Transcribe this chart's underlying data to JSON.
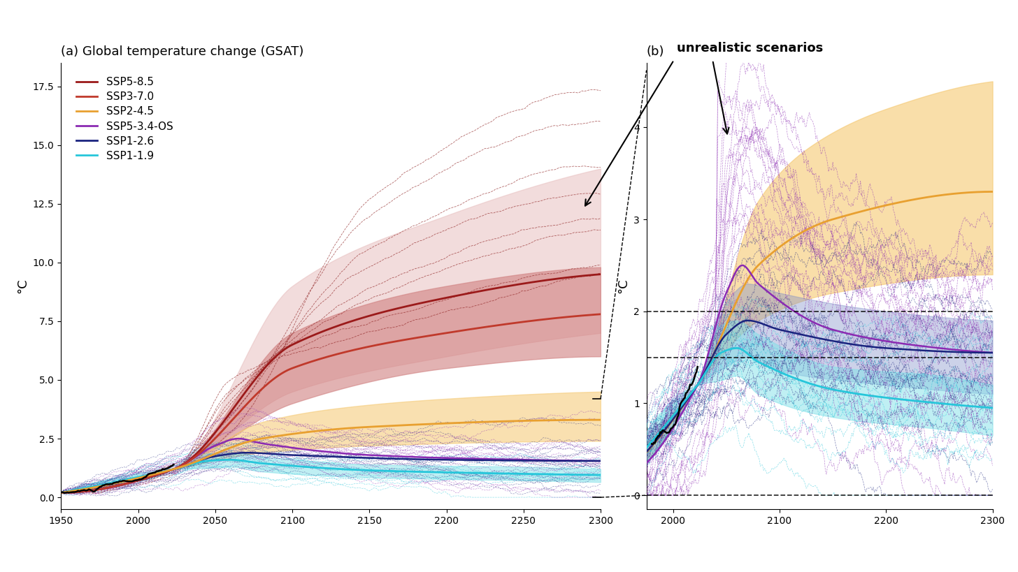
{
  "title_a": "(a) Global temperature change (GSAT)",
  "title_b": "(b)",
  "annotation_text": "unrealistic scenarios",
  "ylabel": "°C",
  "xlim_a": [
    1950,
    2300
  ],
  "ylim_a": [
    -0.5,
    18.5
  ],
  "xlim_b": [
    1975,
    2300
  ],
  "ylim_b": [
    -0.15,
    4.7
  ],
  "xticks_a": [
    1950,
    2000,
    2050,
    2100,
    2150,
    2200,
    2250,
    2300
  ],
  "xticks_b": [
    2000,
    2100,
    2200,
    2300
  ],
  "yticks_a": [
    0.0,
    2.5,
    5.0,
    7.5,
    10.0,
    12.5,
    15.0,
    17.5
  ],
  "yticks_b": [
    0,
    1,
    2,
    3,
    4
  ],
  "dashed_lines_b": [
    0.0,
    1.5,
    2.0
  ],
  "colors": {
    "ssp585": "#9b1a1a",
    "ssp370": "#c0392b",
    "ssp245": "#e8a030",
    "ssp534os": "#8b2ab2",
    "ssp126": "#1a237e",
    "ssp119": "#26c6da",
    "historical": "#000000"
  },
  "fill_colors": {
    "ssp585_outer": "#e8c0c0",
    "ssp585_inner": "#c07070",
    "ssp370": "#d08080",
    "ssp245": "#f5c870",
    "ssp119": "#80e0e8",
    "ssp126": "#8090c8"
  },
  "legend_labels": [
    [
      "SSP5-8.5",
      "#9b1a1a"
    ],
    [
      "SSP3-7.0",
      "#c0392b"
    ],
    [
      "SSP2-4.5",
      "#e8a030"
    ],
    [
      "SSP5-3.4-OS",
      "#8b2ab2"
    ],
    [
      "SSP1-2.6",
      "#1a237e"
    ],
    [
      "SSP1-1.9",
      "#26c6da"
    ]
  ]
}
